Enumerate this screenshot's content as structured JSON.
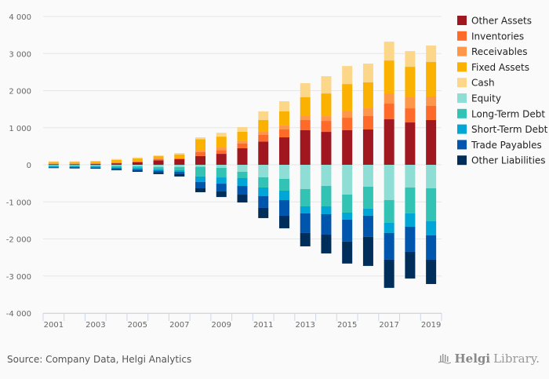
{
  "chart_data": {
    "type": "bar",
    "stacked": true,
    "title": "",
    "xlabel": "",
    "ylabel": "",
    "ylim": [
      -4000,
      4000
    ],
    "yticks": [
      4000,
      3000,
      2000,
      1000,
      0,
      -1000,
      -2000,
      -3000,
      -4000
    ],
    "ytick_labels": [
      "4 000",
      "3 000",
      "2 000",
      "1 000",
      "0",
      "-1 000",
      "-2 000",
      "-3 000",
      "-4 000"
    ],
    "grid": true,
    "legend_position": "right",
    "categories": [
      "2001",
      "2002",
      "2003",
      "2004",
      "2005",
      "2006",
      "2007",
      "2008",
      "2009",
      "2010",
      "2011",
      "2012",
      "2013",
      "2014",
      "2015",
      "2016",
      "2017",
      "2018",
      "2019"
    ],
    "xtick_labels": [
      "2001",
      "2003",
      "2005",
      "2007",
      "2009",
      "2011",
      "2013",
      "2015",
      "2017",
      "2019"
    ],
    "series": [
      {
        "name": "Other Assets",
        "color": "#a0171f",
        "values": [
          18,
          18,
          25,
          40,
          70,
          120,
          148,
          235,
          295,
          445,
          628,
          740,
          931,
          888,
          931,
          952,
          1227,
          1142,
          1206
        ]
      },
      {
        "name": "Inventories",
        "color": "#fd6a2a",
        "values": [
          10,
          10,
          12,
          15,
          20,
          28,
          21,
          105,
          100,
          127,
          176,
          212,
          275,
          296,
          338,
          360,
          423,
          381,
          381
        ]
      },
      {
        "name": "Receivables",
        "color": "#fe974a",
        "values": [
          8,
          8,
          10,
          12,
          15,
          21,
          21,
          55,
          70,
          64,
          85,
          120,
          106,
          127,
          190,
          212,
          275,
          317,
          254
        ]
      },
      {
        "name": "Fixed Assets",
        "color": "#fbb100",
        "values": [
          40,
          40,
          45,
          60,
          65,
          63,
          85,
          295,
          295,
          254,
          317,
          367,
          508,
          613,
          719,
          698,
          888,
          804,
          931
        ]
      },
      {
        "name": "Cash",
        "color": "#fdd789",
        "values": [
          19,
          19,
          14,
          28,
          27,
          21,
          42,
          50,
          105,
          127,
          233,
          275,
          381,
          465,
          486,
          508,
          508,
          423,
          444
        ]
      },
      {
        "name": "Equity",
        "color": "#8fded5",
        "values": [
          -12,
          -12,
          -16,
          -25,
          -40,
          -63,
          -63,
          -55,
          -85,
          -190,
          -338,
          -381,
          -656,
          -571,
          -804,
          -592,
          -952,
          -613,
          -635
        ]
      },
      {
        "name": "Long-Term Debt",
        "color": "#33c3b4",
        "values": [
          -25,
          -25,
          -30,
          -40,
          -45,
          -56,
          -85,
          -260,
          -255,
          -170,
          -275,
          -317,
          -465,
          -550,
          -486,
          -592,
          -613,
          -698,
          -888
        ]
      },
      {
        "name": "Short-Term Debt",
        "color": "#00a6d6",
        "values": [
          -25,
          -25,
          -25,
          -30,
          -35,
          -35,
          -42,
          -150,
          -170,
          -212,
          -233,
          -254,
          -190,
          -212,
          -190,
          -190,
          -275,
          -360,
          -381
        ]
      },
      {
        "name": "Trade Payables",
        "color": "#0055ad",
        "values": [
          -20,
          -25,
          -25,
          -35,
          -40,
          -49,
          -63,
          -170,
          -210,
          -233,
          -317,
          -423,
          -529,
          -550,
          -592,
          -571,
          -719,
          -677,
          -656
        ]
      },
      {
        "name": "Other Liabilities",
        "color": "#002e5b",
        "values": [
          -8,
          -13,
          -10,
          -18,
          -30,
          -49,
          -63,
          -105,
          -150,
          -212,
          -275,
          -338,
          -360,
          -508,
          -592,
          -783,
          -761,
          -719,
          -656
        ]
      }
    ]
  },
  "footer": {
    "source": "Source: Company Data, Helgi Analytics",
    "logo_bold": "Helgi",
    "logo_light": "Library."
  }
}
